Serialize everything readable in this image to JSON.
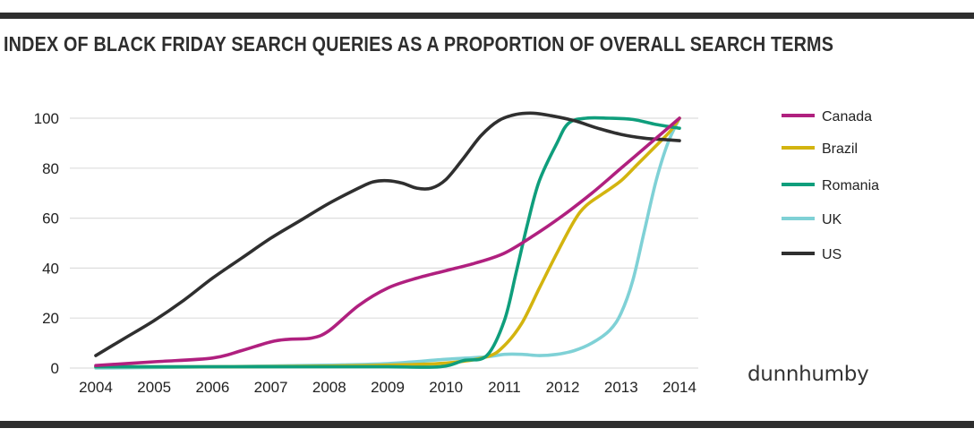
{
  "title": "INDEX OF BLACK FRIDAY SEARCH QUERIES AS A PROPORTION OF OVERALL SEARCH TERMS",
  "brand": "dunnhumby",
  "chart_data": {
    "type": "line",
    "title": "INDEX OF BLACK FRIDAY SEARCH QUERIES AS A PROPORTION OF OVERALL SEARCH TERMS",
    "xlabel": "",
    "ylabel": "",
    "x_ticks": [
      2004,
      2005,
      2006,
      2007,
      2008,
      2009,
      2010,
      2011,
      2012,
      2013,
      2014
    ],
    "y_ticks": [
      0,
      20,
      40,
      60,
      80,
      100
    ],
    "xlim": [
      2004,
      2014
    ],
    "ylim": [
      0,
      100
    ],
    "grid": "horizontal",
    "legend_position": "right",
    "series": [
      {
        "name": "Canada",
        "color": "#b0207f",
        "x": [
          2004,
          2005,
          2006,
          2006.5,
          2007,
          2007.3,
          2007.7,
          2008,
          2008.5,
          2009,
          2009.5,
          2010,
          2010.5,
          2011,
          2011.5,
          2012,
          2012.5,
          2013,
          2013.5,
          2014
        ],
        "y": [
          1,
          2.5,
          4,
          7,
          10.5,
          11.5,
          12,
          15,
          25,
          32,
          36,
          39,
          42,
          46,
          53,
          61,
          70,
          80,
          90,
          100
        ]
      },
      {
        "name": "Brazil",
        "color": "#d3b40f",
        "x": [
          2004,
          2006,
          2008,
          2009,
          2010,
          2010.7,
          2011,
          2011.3,
          2011.6,
          2011.9,
          2012.2,
          2012.4,
          2012.7,
          2013,
          2013.3,
          2013.6,
          2013.85,
          2014
        ],
        "y": [
          0.5,
          0.5,
          0.8,
          1.2,
          2,
          4.5,
          9,
          18,
          32,
          46,
          59,
          65,
          70,
          75,
          82,
          89,
          95,
          100
        ]
      },
      {
        "name": "Romania",
        "color": "#0f9e7c",
        "x": [
          2004,
          2006,
          2008,
          2009,
          2009.9,
          2010.3,
          2010.7,
          2011,
          2011.2,
          2011.4,
          2011.6,
          2011.9,
          2012.1,
          2012.4,
          2012.8,
          2013.2,
          2013.6,
          2014
        ],
        "y": [
          0.5,
          0.5,
          0.5,
          0.5,
          0.5,
          3,
          5,
          19,
          38,
          58,
          75,
          90,
          98,
          100,
          100,
          99.5,
          97.5,
          96
        ]
      },
      {
        "name": "UK",
        "color": "#7fd1d6",
        "x": [
          2004,
          2006,
          2008,
          2009,
          2010,
          2010.7,
          2011,
          2011.3,
          2011.6,
          2011.9,
          2012.2,
          2012.5,
          2012.8,
          2013,
          2013.2,
          2013.4,
          2013.6,
          2013.8,
          2014
        ],
        "y": [
          0,
          0.5,
          1.2,
          1.8,
          3.5,
          4.5,
          5.5,
          5.5,
          5,
          5.5,
          7,
          10,
          15,
          22,
          35,
          55,
          75,
          90,
          100
        ]
      },
      {
        "name": "US",
        "color": "#2f2f2f",
        "x": [
          2004,
          2004.5,
          2005,
          2005.5,
          2006,
          2006.5,
          2007,
          2007.5,
          2008,
          2008.5,
          2008.75,
          2009,
          2009.25,
          2009.5,
          2009.75,
          2010,
          2010.3,
          2010.6,
          2010.9,
          2011.2,
          2011.5,
          2011.8,
          2012.2,
          2012.6,
          2013,
          2013.4,
          2013.7,
          2014
        ],
        "y": [
          5,
          12,
          19,
          27,
          36,
          44,
          52,
          59,
          66,
          72,
          74.5,
          75,
          74,
          72,
          72,
          75.5,
          84,
          93,
          99,
          101.5,
          102,
          101,
          99,
          96,
          93.5,
          92,
          91.5,
          91
        ]
      }
    ]
  }
}
